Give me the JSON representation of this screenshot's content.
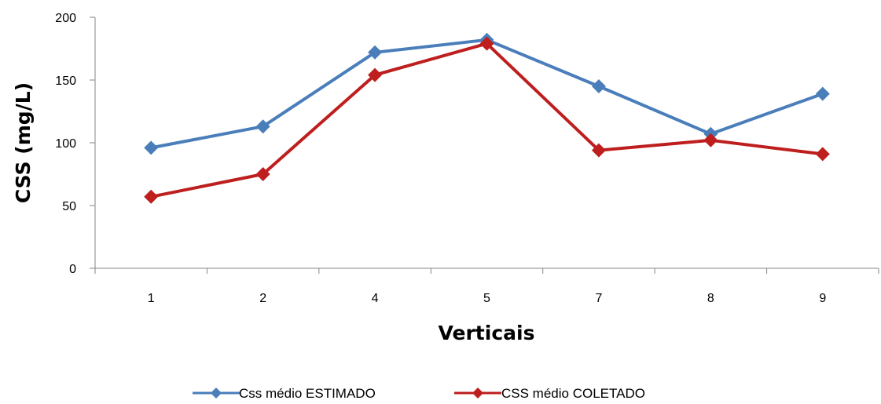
{
  "chart_data": {
    "type": "line",
    "categories": [
      "1",
      "2",
      "4",
      "5",
      "7",
      "8",
      "9"
    ],
    "xlabel": "Verticais",
    "ylabel": "CSS (mg/L)",
    "ylim": [
      0,
      200
    ],
    "yticks": [
      0,
      50,
      100,
      150,
      200
    ],
    "grid": false,
    "legend_position": "bottom",
    "series": [
      {
        "name": "Css médio ESTIMADO",
        "color": "#4A7EBB",
        "marker": "diamond",
        "values": [
          96,
          113,
          172,
          182,
          145,
          107,
          139
        ]
      },
      {
        "name": "CSS médio COLETADO",
        "color": "#BE1E1E",
        "marker": "diamond",
        "values": [
          57,
          75,
          154,
          179,
          94,
          102,
          91
        ]
      }
    ]
  }
}
